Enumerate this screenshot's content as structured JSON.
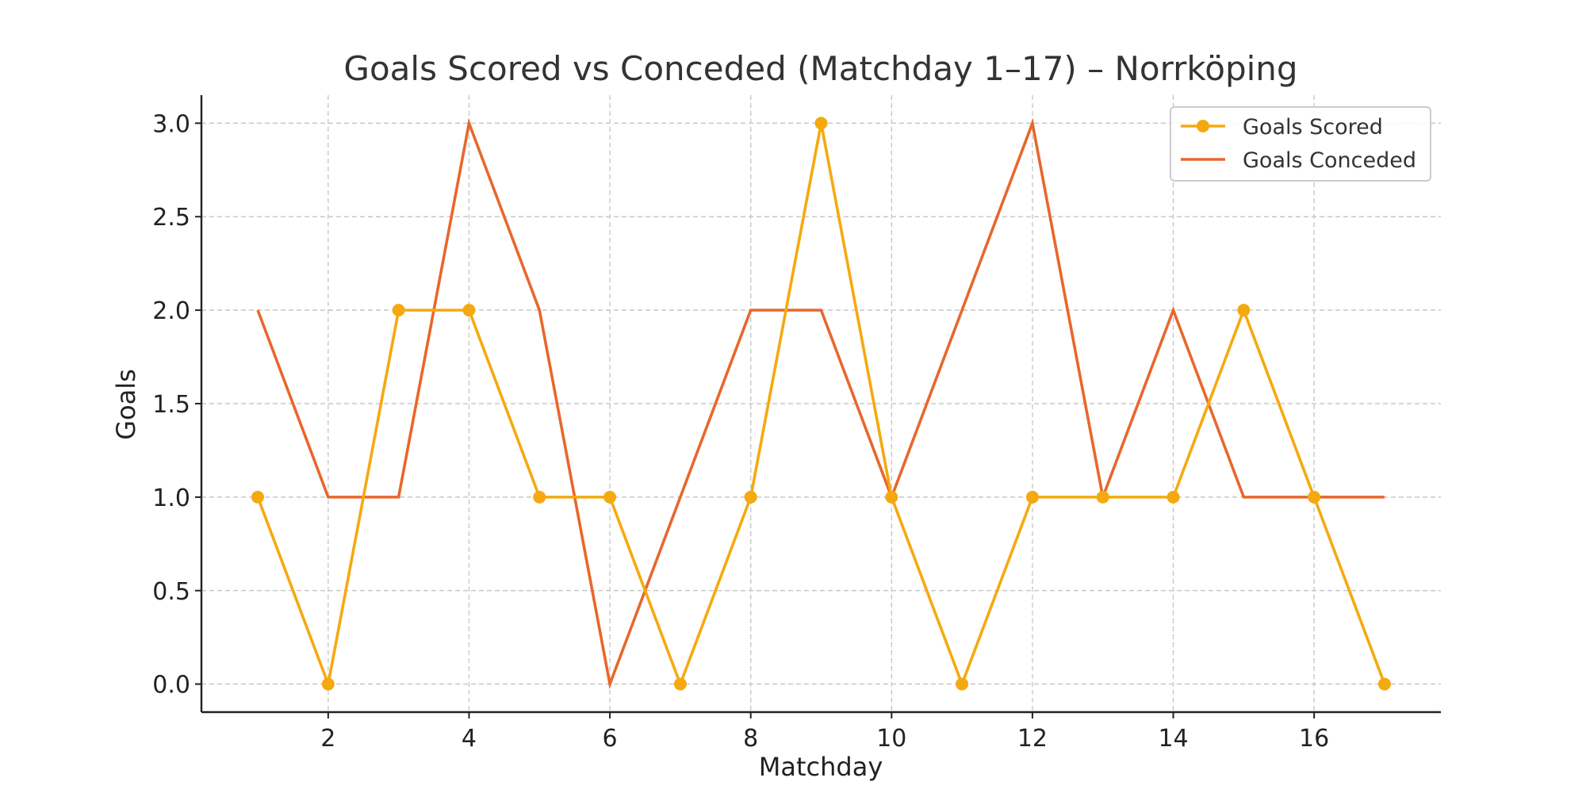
{
  "chart_data": {
    "type": "line",
    "title": "Goals Scored vs Conceded (Matchday 1–17) – Norrköping",
    "xlabel": "Matchday",
    "ylabel": "Goals",
    "x": [
      1,
      2,
      3,
      4,
      5,
      6,
      7,
      8,
      9,
      10,
      11,
      12,
      13,
      14,
      15,
      16,
      17
    ],
    "xlim": [
      0.2,
      17.8
    ],
    "ylim": [
      -0.15,
      3.15
    ],
    "x_ticks": [
      2,
      4,
      6,
      8,
      10,
      12,
      14,
      16
    ],
    "y_ticks": [
      0.0,
      0.5,
      1.0,
      1.5,
      2.0,
      2.5,
      3.0
    ],
    "x_tick_labels": [
      "2",
      "4",
      "6",
      "8",
      "10",
      "12",
      "14",
      "16"
    ],
    "y_tick_labels": [
      "0.0",
      "0.5",
      "1.0",
      "1.5",
      "2.0",
      "2.5",
      "3.0"
    ],
    "grid": true,
    "legend_position": "top-right",
    "series": [
      {
        "name": "Goals Scored",
        "color": "#F5A910",
        "marker": "circle",
        "values": [
          1,
          0,
          2,
          2,
          1,
          1,
          0,
          1,
          3,
          1,
          0,
          1,
          1,
          1,
          2,
          1,
          0
        ]
      },
      {
        "name": "Goals Conceded",
        "color": "#E8672C",
        "marker": "none",
        "values": [
          2,
          1,
          1,
          3,
          2,
          0,
          1,
          2,
          2,
          1,
          2,
          3,
          1,
          2,
          1,
          1,
          1
        ]
      }
    ]
  }
}
